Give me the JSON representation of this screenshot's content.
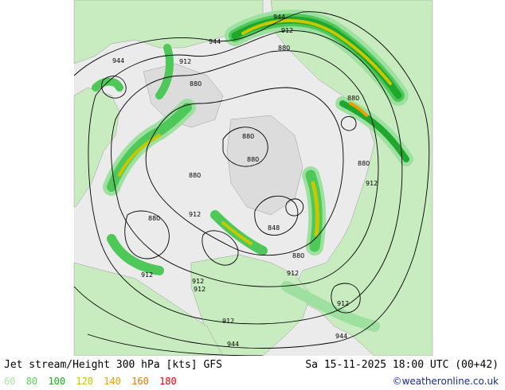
{
  "map": {
    "contour_labels": [
      {
        "text": "944"
      },
      {
        "text": "944"
      },
      {
        "text": "944"
      },
      {
        "text": "912"
      },
      {
        "text": "912"
      },
      {
        "text": "880"
      },
      {
        "text": "880"
      },
      {
        "text": "880"
      },
      {
        "text": "880"
      },
      {
        "text": "880"
      },
      {
        "text": "912"
      },
      {
        "text": "880"
      },
      {
        "text": "912"
      },
      {
        "text": "848"
      },
      {
        "text": "880"
      },
      {
        "text": "912"
      },
      {
        "text": "912"
      },
      {
        "text": "912"
      },
      {
        "text": "912"
      },
      {
        "text": "912"
      },
      {
        "text": "912"
      },
      {
        "text": "944"
      },
      {
        "text": "944"
      },
      {
        "text": "880"
      },
      {
        "text": "880"
      }
    ],
    "colors": {
      "land": "#c8ecc0",
      "ocean": "#ebebeb",
      "jet_60": "#9ee0a0",
      "jet_80": "#4fc85a",
      "jet_100": "#1ea82e",
      "jet_120": "#c8c800",
      "jet_140": "#e6a000"
    }
  },
  "footer": {
    "title": "Jet stream/Height 300 hPa [kts] GFS",
    "datetime": "Sa 15-11-2025 18:00 UTC (00+42)",
    "legend": [
      {
        "value": "60",
        "color": "#a8e6a0"
      },
      {
        "value": "80",
        "color": "#5ad25a"
      },
      {
        "value": "100",
        "color": "#14b414"
      },
      {
        "value": "120",
        "color": "#c8c800"
      },
      {
        "value": "140",
        "color": "#e6a000"
      },
      {
        "value": "160",
        "color": "#e67800"
      },
      {
        "value": "180",
        "color": "#e60000"
      }
    ],
    "credit": "©weatheronline.co.uk"
  }
}
